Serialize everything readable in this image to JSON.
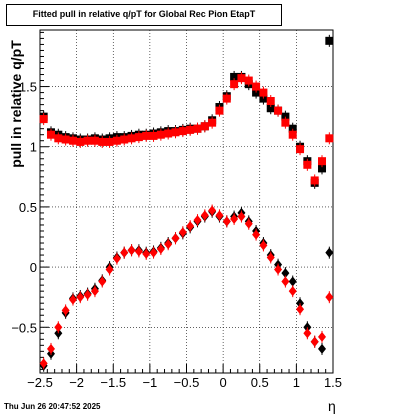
{
  "title": "Fitted pull in relative q/pT for Global Rec Pion EtapT",
  "ylabel": "pull in relative q/pT",
  "xlabel": "η",
  "timestamp": "Thu Jun 26 20:47:52 2025",
  "chart_data": {
    "type": "scatter",
    "title": "Fitted pull in relative q/pT for Global Rec Pion EtapT",
    "xlabel": "η",
    "ylabel": "pull in relative q/pT",
    "xlim": [
      -2.5,
      1.5
    ],
    "ylim": [
      -0.88,
      1.97
    ],
    "grid": true,
    "x_ticks": [
      -2.5,
      -2,
      -1.5,
      -1,
      -0.5,
      0,
      0.5,
      1,
      1.5
    ],
    "x_tick_labels": [
      "−2.5",
      "−2",
      "−1.5",
      "−1",
      "−0.5",
      "0",
      "0.5",
      "1",
      "1.5"
    ],
    "y_ticks": [
      -0.5,
      0,
      0.5,
      1,
      1.5
    ],
    "y_tick_labels": [
      "−0.5",
      "0",
      "0.5",
      "1",
      "1.5"
    ],
    "colors": {
      "black": "#000000",
      "red": "#ff0000"
    },
    "series": [
      {
        "marker": "square",
        "color": "#000000",
        "x": [
          -2.45,
          -2.35,
          -2.25,
          -2.15,
          -2.05,
          -1.95,
          -1.85,
          -1.75,
          -1.65,
          -1.55,
          -1.45,
          -1.35,
          -1.25,
          -1.15,
          -1.05,
          -0.95,
          -0.85,
          -0.75,
          -0.65,
          -0.55,
          -0.45,
          -0.35,
          -0.25,
          -0.15,
          -0.05,
          0.05,
          0.15,
          0.25,
          0.35,
          0.45,
          0.55,
          0.65,
          0.75,
          0.85,
          0.95,
          1.05,
          1.15,
          1.25,
          1.35,
          1.45
        ],
        "y": [
          1.25,
          1.12,
          1.1,
          1.08,
          1.07,
          1.06,
          1.06,
          1.07,
          1.06,
          1.07,
          1.08,
          1.08,
          1.09,
          1.1,
          1.1,
          1.11,
          1.12,
          1.13,
          1.13,
          1.14,
          1.15,
          1.15,
          1.17,
          1.22,
          1.33,
          1.42,
          1.58,
          1.58,
          1.52,
          1.45,
          1.4,
          1.32,
          1.3,
          1.25,
          1.15,
          1.0,
          0.88,
          0.7,
          0.82,
          1.88
        ]
      },
      {
        "marker": "square",
        "color": "#ff0000",
        "x": [
          -2.45,
          -2.35,
          -2.25,
          -2.15,
          -2.05,
          -1.95,
          -1.85,
          -1.75,
          -1.65,
          -1.55,
          -1.45,
          -1.35,
          -1.25,
          -1.15,
          -1.05,
          -0.95,
          -0.85,
          -0.75,
          -0.65,
          -0.55,
          -0.45,
          -0.35,
          -0.25,
          -0.15,
          -0.05,
          0.05,
          0.15,
          0.25,
          0.35,
          0.45,
          0.55,
          0.65,
          0.75,
          0.85,
          0.95,
          1.05,
          1.15,
          1.25,
          1.35,
          1.45
        ],
        "y": [
          1.23,
          1.1,
          1.07,
          1.06,
          1.05,
          1.04,
          1.05,
          1.05,
          1.04,
          1.04,
          1.05,
          1.06,
          1.07,
          1.08,
          1.09,
          1.09,
          1.1,
          1.11,
          1.12,
          1.13,
          1.14,
          1.15,
          1.17,
          1.2,
          1.3,
          1.4,
          1.52,
          1.57,
          1.55,
          1.5,
          1.45,
          1.38,
          1.3,
          1.2,
          1.1,
          0.98,
          0.85,
          0.72,
          0.88,
          1.07
        ]
      },
      {
        "marker": "diamond",
        "color": "#000000",
        "x": [
          -2.45,
          -2.35,
          -2.25,
          -2.15,
          -2.05,
          -1.95,
          -1.85,
          -1.75,
          -1.65,
          -1.55,
          -1.45,
          -1.35,
          -1.25,
          -1.15,
          -1.05,
          -0.95,
          -0.85,
          -0.75,
          -0.65,
          -0.55,
          -0.45,
          -0.35,
          -0.25,
          -0.15,
          -0.05,
          0.05,
          0.15,
          0.25,
          0.35,
          0.45,
          0.55,
          0.65,
          0.75,
          0.85,
          0.95,
          1.05,
          1.15,
          1.25,
          1.35,
          1.45
        ],
        "y": [
          -0.82,
          -0.72,
          -0.55,
          -0.38,
          -0.26,
          -0.24,
          -0.22,
          -0.18,
          -0.11,
          0.0,
          0.08,
          0.12,
          0.14,
          0.14,
          0.12,
          0.13,
          0.16,
          0.2,
          0.24,
          0.28,
          0.33,
          0.38,
          0.42,
          0.46,
          0.42,
          0.38,
          0.42,
          0.45,
          0.38,
          0.3,
          0.2,
          0.1,
          0.02,
          -0.05,
          -0.12,
          -0.3,
          -0.5,
          -0.62,
          -0.68,
          0.12
        ]
      },
      {
        "marker": "diamond",
        "color": "#ff0000",
        "x": [
          -2.45,
          -2.35,
          -2.25,
          -2.15,
          -2.05,
          -1.95,
          -1.85,
          -1.75,
          -1.65,
          -1.55,
          -1.45,
          -1.35,
          -1.25,
          -1.15,
          -1.05,
          -0.95,
          -0.85,
          -0.75,
          -0.65,
          -0.55,
          -0.45,
          -0.35,
          -0.25,
          -0.15,
          -0.05,
          0.05,
          0.15,
          0.25,
          0.35,
          0.45,
          0.55,
          0.65,
          0.75,
          0.85,
          0.95,
          1.05,
          1.15,
          1.25,
          1.35,
          1.45
        ],
        "y": [
          -0.8,
          -0.68,
          -0.5,
          -0.36,
          -0.27,
          -0.25,
          -0.23,
          -0.2,
          -0.12,
          -0.02,
          0.07,
          0.12,
          0.14,
          0.13,
          0.11,
          0.12,
          0.15,
          0.19,
          0.24,
          0.29,
          0.34,
          0.39,
          0.43,
          0.47,
          0.43,
          0.38,
          0.4,
          0.42,
          0.36,
          0.27,
          0.18,
          0.08,
          -0.02,
          -0.12,
          -0.2,
          -0.35,
          -0.55,
          -0.62,
          -0.58,
          -0.25
        ]
      }
    ]
  }
}
